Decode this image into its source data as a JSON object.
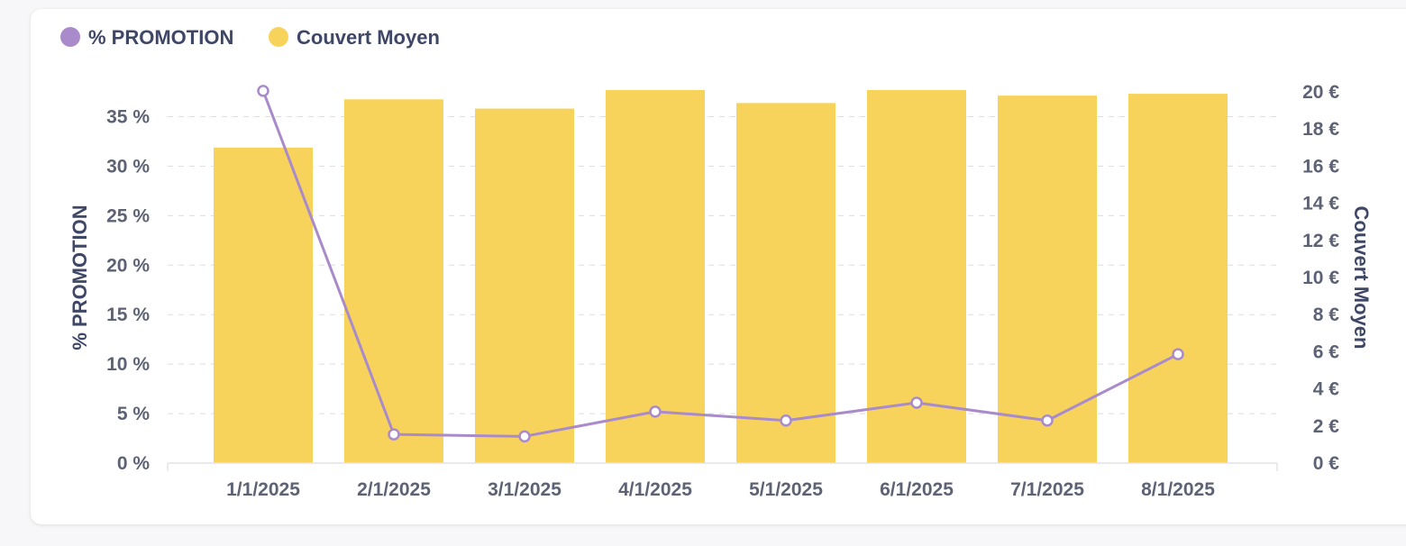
{
  "chart_data": {
    "type": "bar",
    "categories": [
      "1/1/2025",
      "2/1/2025",
      "3/1/2025",
      "4/1/2025",
      "5/1/2025",
      "6/1/2025",
      "7/1/2025",
      "8/1/2025"
    ],
    "series": [
      {
        "name": "Couvert Moyen",
        "type": "bar",
        "axis": "right",
        "color": "#f7d35c",
        "values": [
          17.0,
          19.6,
          19.1,
          20.1,
          19.4,
          20.1,
          19.8,
          19.9
        ]
      },
      {
        "name": "% PROMOTION",
        "type": "line",
        "axis": "left",
        "color": "#a98bcb",
        "values": [
          37.6,
          2.9,
          2.7,
          5.2,
          4.3,
          6.1,
          4.3,
          11.0
        ]
      }
    ],
    "y_left": {
      "label": "% PROMOTION",
      "range": [
        0,
        37.5
      ],
      "ticks": [
        {
          "v": 0,
          "label": "0 %"
        },
        {
          "v": 5,
          "label": "5 %"
        },
        {
          "v": 10,
          "label": "10 %"
        },
        {
          "v": 15,
          "label": "15 %"
        },
        {
          "v": 20,
          "label": "20 %"
        },
        {
          "v": 25,
          "label": "25 %"
        },
        {
          "v": 30,
          "label": "30 %"
        },
        {
          "v": 35,
          "label": "35 %"
        }
      ]
    },
    "y_right": {
      "label": "Couvert Moyen",
      "range": [
        0,
        20
      ],
      "ticks": [
        {
          "v": 0,
          "label": "0 €"
        },
        {
          "v": 2,
          "label": "2 €"
        },
        {
          "v": 4,
          "label": "4 €"
        },
        {
          "v": 6,
          "label": "6 €"
        },
        {
          "v": 8,
          "label": "8 €"
        },
        {
          "v": 10,
          "label": "10 €"
        },
        {
          "v": 12,
          "label": "12 €"
        },
        {
          "v": 14,
          "label": "14 €"
        },
        {
          "v": 16,
          "label": "16 €"
        },
        {
          "v": 18,
          "label": "18 €"
        },
        {
          "v": 20,
          "label": "20 €"
        }
      ]
    },
    "grid": true,
    "legend": {
      "position": "top-left",
      "items": [
        {
          "label": "% PROMOTION",
          "color": "#a98bcb"
        },
        {
          "label": "Couvert Moyen",
          "color": "#f7d35c"
        }
      ]
    }
  }
}
